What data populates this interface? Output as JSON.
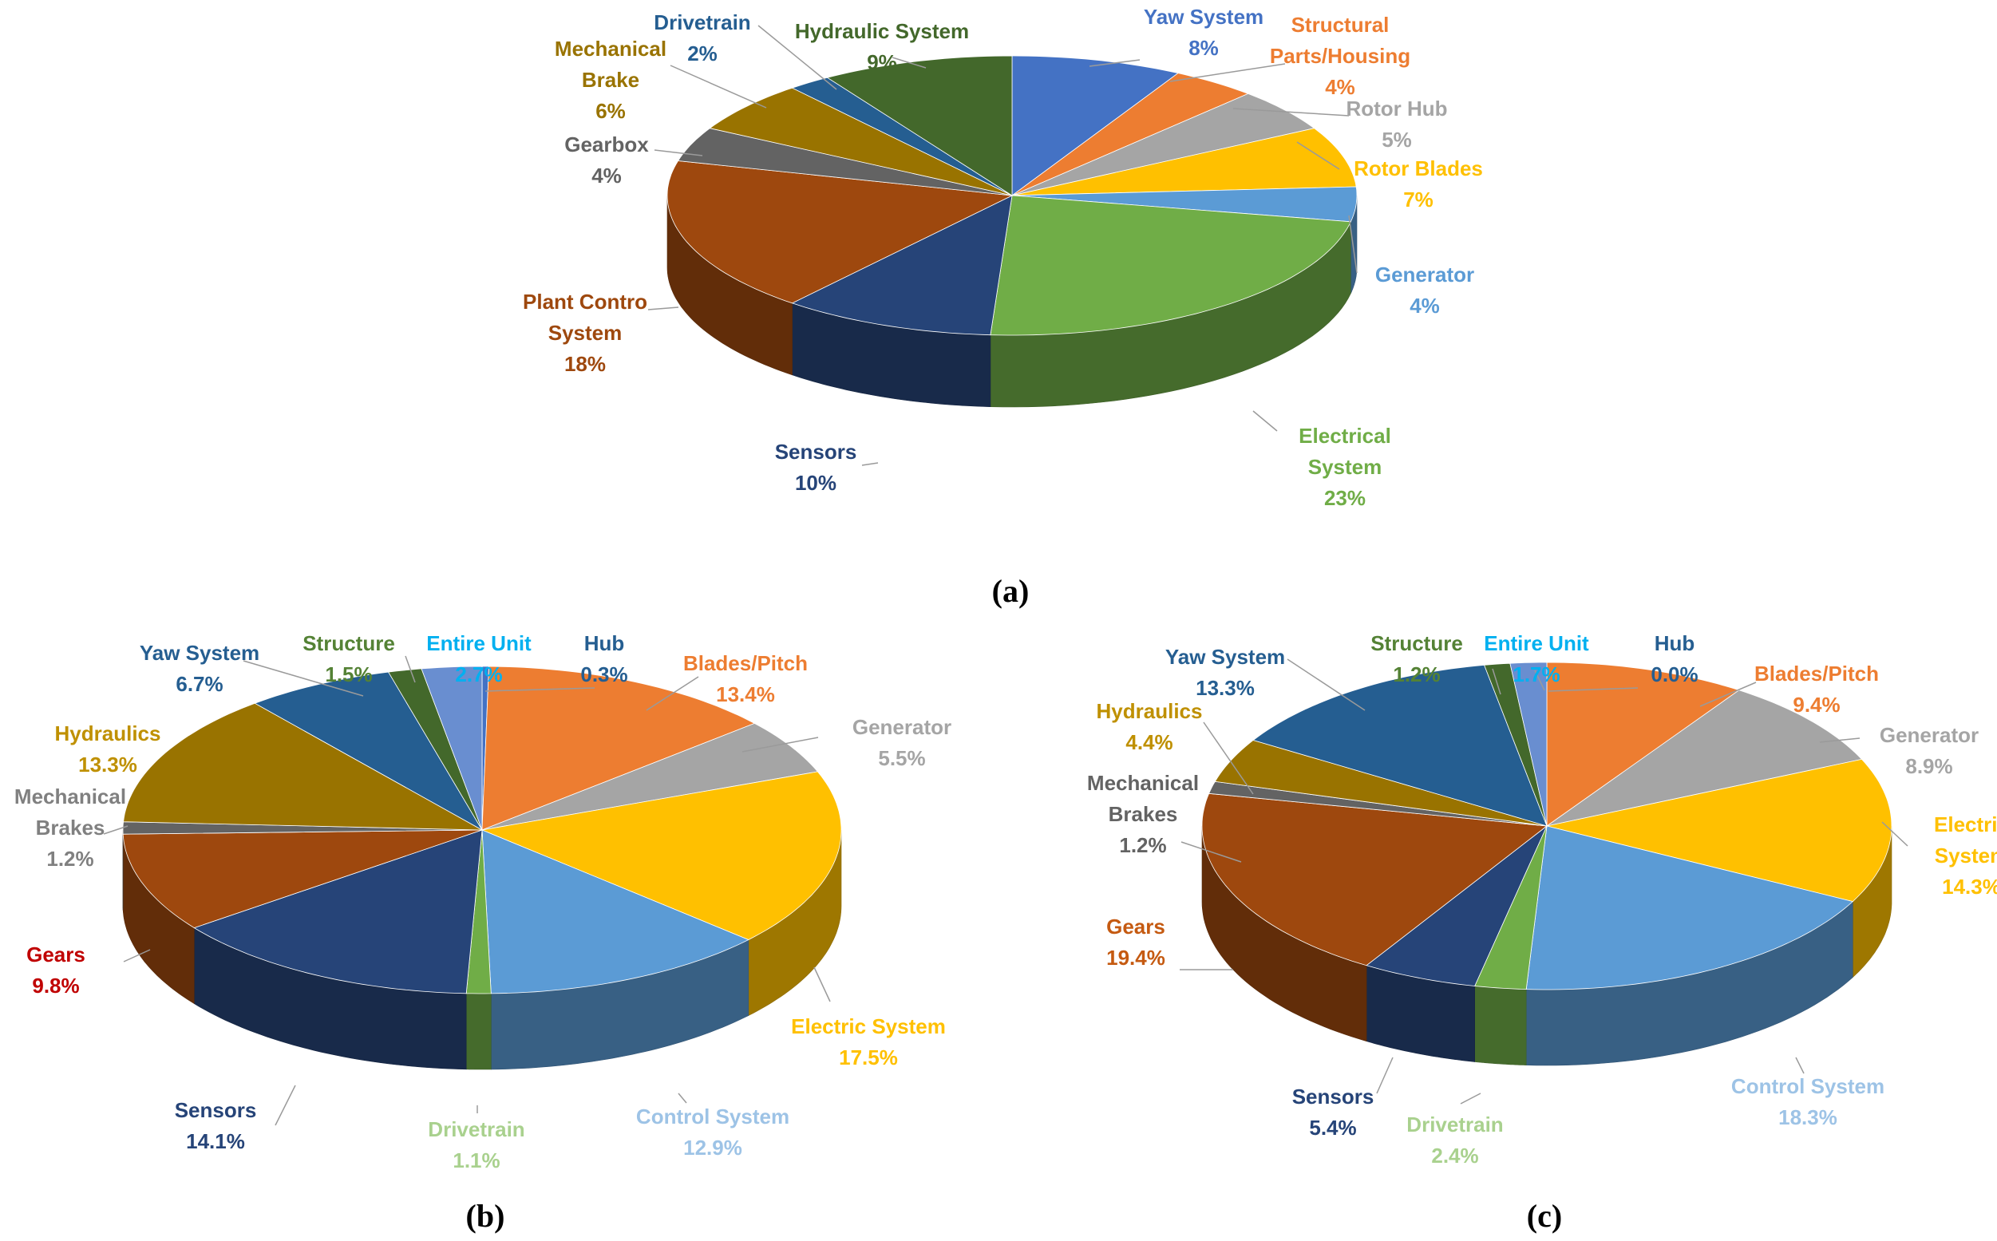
{
  "chart_data": [
    {
      "type": "pie",
      "caption": "(a)",
      "slices": [
        {
          "label": "Yaw System",
          "value_text": "8%",
          "value": 8,
          "color": "#4472C4"
        },
        {
          "label": "Structural Parts/Housing",
          "value_text": "4%",
          "value": 4,
          "color": "#ED7D31"
        },
        {
          "label": "Rotor Hub",
          "value_text": "5%",
          "value": 5,
          "color": "#A5A5A5"
        },
        {
          "label": "Rotor Blades",
          "value_text": "7%",
          "value": 7,
          "color": "#FFC000"
        },
        {
          "label": "Generator",
          "value_text": "4%",
          "value": 4,
          "color": "#5B9BD5"
        },
        {
          "label": "Electrical System",
          "value_text": "23%",
          "value": 23,
          "color": "#70AD47"
        },
        {
          "label": "Sensors",
          "value_text": "10%",
          "value": 10,
          "color": "#264478"
        },
        {
          "label": "Plant Control System",
          "value_text": "18%",
          "value": 18,
          "color": "#9E480E"
        },
        {
          "label": "Gearbox",
          "value_text": "4%",
          "value": 4,
          "color": "#636363"
        },
        {
          "label": "Mechanical Brake",
          "value_text": "6%",
          "value": 6,
          "color": "#997300"
        },
        {
          "label": "Drivetrain",
          "value_text": "2%",
          "value": 2,
          "color": "#255E91"
        },
        {
          "label": "Hydraulic System",
          "value_text": "9%",
          "value": 9,
          "color": "#43682B"
        }
      ]
    },
    {
      "type": "pie",
      "caption": "(b)",
      "slices": [
        {
          "label": "Hub",
          "value_text": "0.3%",
          "value": 0.3,
          "color": "#4472C4"
        },
        {
          "label": "Blades/Pitch",
          "value_text": "13.4%",
          "value": 13.4,
          "color": "#ED7D31"
        },
        {
          "label": "Generator",
          "value_text": "5.5%",
          "value": 5.5,
          "color": "#A5A5A5"
        },
        {
          "label": "Electric System",
          "value_text": "17.5%",
          "value": 17.5,
          "color": "#FFC000"
        },
        {
          "label": "Control System",
          "value_text": "12.9%",
          "value": 12.9,
          "color": "#5B9BD5"
        },
        {
          "label": "Drivetrain",
          "value_text": "1.1%",
          "value": 1.1,
          "color": "#70AD47"
        },
        {
          "label": "Sensors",
          "value_text": "14.1%",
          "value": 14.1,
          "color": "#264478"
        },
        {
          "label": "Gears",
          "value_text": "9.8%",
          "value": 9.8,
          "color": "#9E480E"
        },
        {
          "label": "Mechanical Brakes",
          "value_text": "1.2%",
          "value": 1.2,
          "color": "#636363"
        },
        {
          "label": "Hydraulics",
          "value_text": "13.3%",
          "value": 13.3,
          "color": "#997300"
        },
        {
          "label": "Yaw System",
          "value_text": "6.7%",
          "value": 6.7,
          "color": "#255E91"
        },
        {
          "label": "Structure",
          "value_text": "1.5%",
          "value": 1.5,
          "color": "#43682B"
        },
        {
          "label": "Entire Unit",
          "value_text": "2.7%",
          "value": 2.7,
          "color": "#698ED0"
        }
      ]
    },
    {
      "type": "pie",
      "caption": "(c)",
      "slices": [
        {
          "label": "Hub",
          "value_text": "0.0%",
          "value": 0.0,
          "color": "#4472C4"
        },
        {
          "label": "Blades/Pitch",
          "value_text": "9.4%",
          "value": 9.4,
          "color": "#ED7D31"
        },
        {
          "label": "Generator",
          "value_text": "8.9%",
          "value": 8.9,
          "color": "#A5A5A5"
        },
        {
          "label": "Electric System",
          "value_text": "14.3%",
          "value": 14.3,
          "color": "#FFC000"
        },
        {
          "label": "Control System",
          "value_text": "18.3%",
          "value": 18.3,
          "color": "#5B9BD5"
        },
        {
          "label": "Drivetrain",
          "value_text": "2.4%",
          "value": 2.4,
          "color": "#70AD47"
        },
        {
          "label": "Sensors",
          "value_text": "5.4%",
          "value": 5.4,
          "color": "#264478"
        },
        {
          "label": "Gears",
          "value_text": "19.4%",
          "value": 19.4,
          "color": "#9E480E"
        },
        {
          "label": "Mechanical Brakes",
          "value_text": "1.2%",
          "value": 1.2,
          "color": "#636363"
        },
        {
          "label": "Hydraulics",
          "value_text": "4.4%",
          "value": 4.4,
          "color": "#997300"
        },
        {
          "label": "Yaw System",
          "value_text": "13.3%",
          "value": 13.3,
          "color": "#255E91"
        },
        {
          "label": "Structure",
          "value_text": "1.2%",
          "value": 1.2,
          "color": "#43682B"
        },
        {
          "label": "Entire Unit",
          "value_text": "1.7%",
          "value": 1.7,
          "color": "#698ED0"
        }
      ]
    }
  ],
  "label_colors": {
    "a": [
      "#4472C4",
      "#ED7D31",
      "#A5A5A5",
      "#FFC000",
      "#5B9BD5",
      "#70AD47",
      "#264478",
      "#9E480E",
      "#636363",
      "#997300",
      "#255E91",
      "#43682B"
    ],
    "b": [
      "#255E91",
      "#ED7D31",
      "#A5A5A5",
      "#FFC000",
      "#9DC3E6",
      "#A9D18E",
      "#264478",
      "#C00000",
      "#808080",
      "#BF9000",
      "#255E91",
      "#548235",
      "#00B0F0"
    ],
    "c": [
      "#255E91",
      "#ED7D31",
      "#A5A5A5",
      "#FFC000",
      "#9DC3E6",
      "#A9D18E",
      "#264478",
      "#C55A11",
      "#636363",
      "#BF9000",
      "#255E91",
      "#548235",
      "#00B0F0"
    ]
  },
  "label_lines": {
    "a": {
      "Yaw System": [
        "Yaw System",
        "8%"
      ],
      "Structural Parts/Housing": [
        "Structural",
        "Parts/Housing",
        "4%"
      ],
      "Rotor Hub": [
        "Rotor Hub",
        "5%"
      ],
      "Rotor Blades": [
        "Rotor Blades",
        "7%"
      ],
      "Generator": [
        "Generator",
        "4%"
      ],
      "Electrical System": [
        "Electrical",
        "System",
        "23%"
      ],
      "Sensors": [
        "Sensors",
        "10%"
      ],
      "Plant Control System": [
        "Plant Contro",
        "System",
        "18%"
      ],
      "Gearbox": [
        "Gearbox",
        "4%"
      ],
      "Mechanical Brake": [
        "Mechanical",
        "Brake",
        "6%"
      ],
      "Drivetrain": [
        "Drivetrain",
        "2%"
      ],
      "Hydraulic System": [
        "Hydraulic System",
        "9%"
      ]
    },
    "b": {
      "Hub": [
        "Hub",
        "0.3%"
      ],
      "Blades/Pitch": [
        "Blades/Pitch",
        "13.4%"
      ],
      "Generator": [
        "Generator",
        "5.5%"
      ],
      "Electric System": [
        "Electric System",
        "17.5%"
      ],
      "Control System": [
        "Control System",
        "12.9%"
      ],
      "Drivetrain": [
        "Drivetrain",
        "1.1%"
      ],
      "Sensors": [
        "Sensors",
        "14.1%"
      ],
      "Gears": [
        "Gears",
        "9.8%"
      ],
      "Mechanical Brakes": [
        "Mechanical",
        "Brakes",
        "1.2%"
      ],
      "Hydraulics": [
        "Hydraulics",
        "13.3%"
      ],
      "Yaw System": [
        "Yaw System",
        "6.7%"
      ],
      "Structure": [
        "Structure",
        "1.5%"
      ],
      "Entire Unit": [
        "Entire Unit",
        "2.7%"
      ]
    },
    "c": {
      "Hub": [
        "Hub",
        "0.0%"
      ],
      "Blades/Pitch": [
        "Blades/Pitch",
        "9.4%"
      ],
      "Generator": [
        "Generator",
        "8.9%"
      ],
      "Electric System": [
        "Electric",
        "System",
        "14.3%"
      ],
      "Control System": [
        "Control System",
        "18.3%"
      ],
      "Drivetrain": [
        "Drivetrain",
        "2.4%"
      ],
      "Sensors": [
        "Sensors",
        "5.4%"
      ],
      "Gears": [
        "Gears",
        "19.4%"
      ],
      "Mechanical Brakes": [
        "Mechanical",
        "Brakes",
        "1.2%"
      ],
      "Hydraulics": [
        "Hydraulics",
        "4.4%"
      ],
      "Yaw System": [
        "Yaw System",
        "13.3%"
      ],
      "Structure": [
        "Structure",
        "1.2%"
      ],
      "Entire Unit": [
        "Entire Unit",
        "1.7%"
      ]
    }
  }
}
